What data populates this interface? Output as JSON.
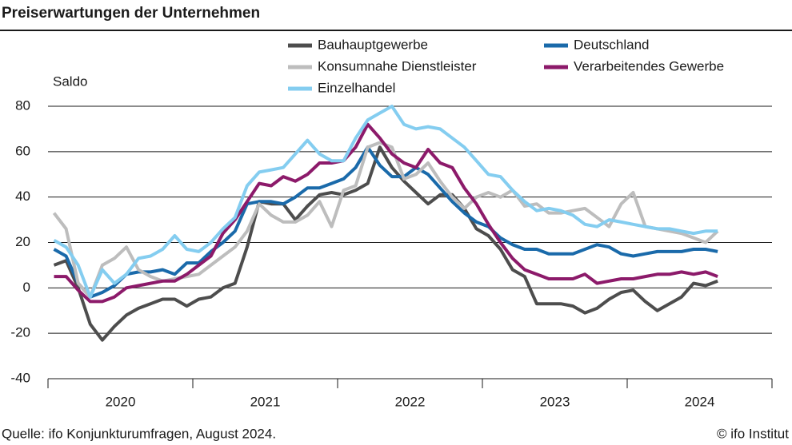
{
  "chart_data": {
    "type": "line",
    "title": "Preiserwartungen der Unternehmen",
    "y_label": "Saldo",
    "source": "Quelle: ifo Konjunkturumfragen, August 2024.",
    "credit": "© ifo Institut",
    "categories": [
      null,
      null,
      null,
      null,
      null,
      null,
      "2020",
      null,
      null,
      null,
      null,
      null,
      null,
      null,
      null,
      null,
      null,
      null,
      "2021",
      null,
      null,
      null,
      null,
      null,
      null,
      null,
      null,
      null,
      null,
      null,
      "2022",
      null,
      null,
      null,
      null,
      null,
      null,
      null,
      null,
      null,
      null,
      null,
      "2023",
      null,
      null,
      null,
      null,
      null,
      null,
      null,
      null,
      null,
      null,
      null,
      "2024",
      null
    ],
    "ylim": [
      -40,
      80
    ],
    "yticks": [
      -40,
      -20,
      0,
      20,
      40,
      60,
      80
    ],
    "grid": true,
    "series": [
      {
        "name": "Bauhauptgewerbe",
        "color": "#4d4d4d",
        "values": [
          10,
          12,
          0,
          -16,
          -23,
          -17,
          -12,
          -9,
          -7,
          -5,
          -5,
          -8,
          -5,
          -4,
          0,
          2,
          18,
          38,
          37,
          37,
          30,
          36,
          41,
          42,
          41,
          43,
          46,
          62,
          53,
          47,
          42,
          37,
          41,
          41,
          35,
          26,
          23,
          17,
          8,
          5,
          -7,
          -7,
          -7,
          -8,
          -11,
          -9,
          -5,
          -2,
          -1,
          -6,
          -10,
          -7,
          -4,
          2,
          1,
          3
        ]
      },
      {
        "name": "Deutschland",
        "color": "#1a6aaa",
        "values": [
          17,
          14,
          2,
          -4,
          -2,
          1,
          6,
          7,
          7,
          8,
          6,
          11,
          11,
          16,
          20,
          25,
          37,
          38,
          38,
          37,
          40,
          44,
          44,
          46,
          48,
          53,
          62,
          54,
          49,
          49,
          53,
          50,
          44,
          38,
          33,
          29,
          27,
          22,
          19,
          17,
          17,
          15,
          15,
          15,
          17,
          19,
          18,
          15,
          14,
          15,
          16,
          16,
          16,
          17,
          17,
          16
        ]
      },
      {
        "name": "Konsumnahe Dienstleister",
        "color": "#bdbdbd",
        "values": [
          33,
          26,
          2,
          -4,
          10,
          13,
          18,
          8,
          5,
          3,
          4,
          5,
          6,
          10,
          14,
          18,
          25,
          37,
          32,
          29,
          29,
          32,
          38,
          27,
          43,
          45,
          62,
          64,
          62,
          48,
          50,
          55,
          47,
          40,
          35,
          40,
          42,
          40,
          43,
          36,
          37,
          33,
          33,
          34,
          35,
          31,
          27,
          37,
          42,
          27,
          26,
          25,
          24,
          22,
          20,
          25
        ]
      },
      {
        "name": "Verarbeitendes Gewerbe",
        "color": "#8c1a6a",
        "values": [
          5,
          5,
          -1,
          -6,
          -6,
          -4,
          0,
          1,
          2,
          3,
          3,
          6,
          10,
          14,
          24,
          30,
          38,
          46,
          45,
          49,
          47,
          50,
          55,
          55,
          56,
          62,
          72,
          66,
          59,
          55,
          53,
          61,
          55,
          53,
          44,
          37,
          28,
          20,
          13,
          8,
          6,
          4,
          4,
          4,
          6,
          2,
          3,
          4,
          4,
          5,
          6,
          6,
          7,
          6,
          7,
          5
        ]
      },
      {
        "name": "Einzelhandel",
        "color": "#84cdf0",
        "values": [
          21,
          18,
          10,
          -4,
          8,
          2,
          6,
          13,
          14,
          17,
          23,
          17,
          16,
          20,
          26,
          31,
          45,
          51,
          52,
          53,
          59,
          65,
          59,
          56,
          56,
          66,
          74,
          77,
          80,
          72,
          70,
          71,
          70,
          66,
          62,
          56,
          50,
          49,
          43,
          38,
          34,
          35,
          34,
          32,
          28,
          27,
          30,
          29,
          28,
          27,
          26,
          26,
          25,
          24,
          25,
          25
        ]
      }
    ]
  }
}
